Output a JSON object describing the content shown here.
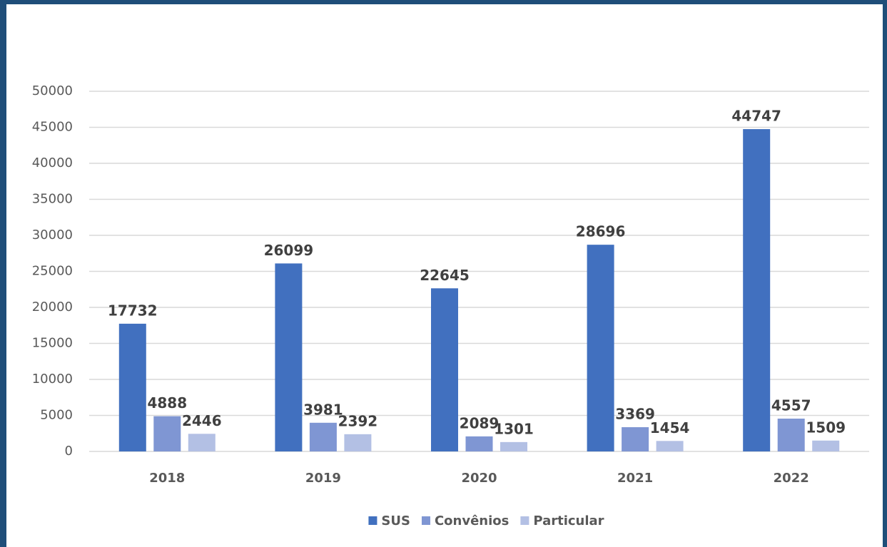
{
  "chart_data": {
    "type": "bar",
    "categories": [
      "2018",
      "2019",
      "2020",
      "2021",
      "2022"
    ],
    "series": [
      {
        "name": "SUS",
        "color": "#4170bf",
        "values": [
          17732,
          26099,
          22645,
          28696,
          44747
        ]
      },
      {
        "name": "Convênios",
        "color": "#7f96d3",
        "values": [
          4888,
          3981,
          2089,
          3369,
          4557
        ]
      },
      {
        "name": "Particular",
        "color": "#b3c0e4",
        "values": [
          2446,
          2392,
          1301,
          1454,
          1509
        ]
      }
    ],
    "ylim": [
      0,
      50000
    ],
    "yticks": [
      0,
      5000,
      10000,
      15000,
      20000,
      25000,
      30000,
      35000,
      40000,
      45000,
      50000
    ],
    "grid": true,
    "legend": "bottom"
  }
}
